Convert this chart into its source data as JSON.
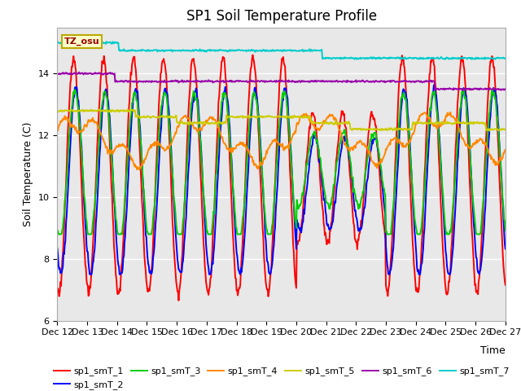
{
  "title": "SP1 Soil Temperature Profile",
  "xlabel": "Time",
  "ylabel": "Soil Temperature (C)",
  "ylim": [
    6.0,
    15.5
  ],
  "xtick_labels": [
    "Dec 12",
    "Dec 13",
    "Dec 14",
    "Dec 15",
    "Dec 16",
    "Dec 17",
    "Dec 18",
    "Dec 19",
    "Dec 20",
    "Dec 21",
    "Dec 22",
    "Dec 23",
    "Dec 24",
    "Dec 25",
    "Dec 26",
    "Dec 27"
  ],
  "series_colors": {
    "sp1_smT_1": "#FF0000",
    "sp1_smT_2": "#0000FF",
    "sp1_smT_3": "#00CC00",
    "sp1_smT_4": "#FF8800",
    "sp1_smT_5": "#CCCC00",
    "sp1_smT_6": "#9900AA",
    "sp1_smT_7": "#00CCCC"
  },
  "legend_label": "TZ_osu",
  "background_color": "#FFFFFF",
  "plot_bg_color": "#E8E8E8",
  "title_fontsize": 12,
  "axis_fontsize": 9,
  "tick_fontsize": 8,
  "legend_fontsize": 8,
  "linewidth": 1.4
}
